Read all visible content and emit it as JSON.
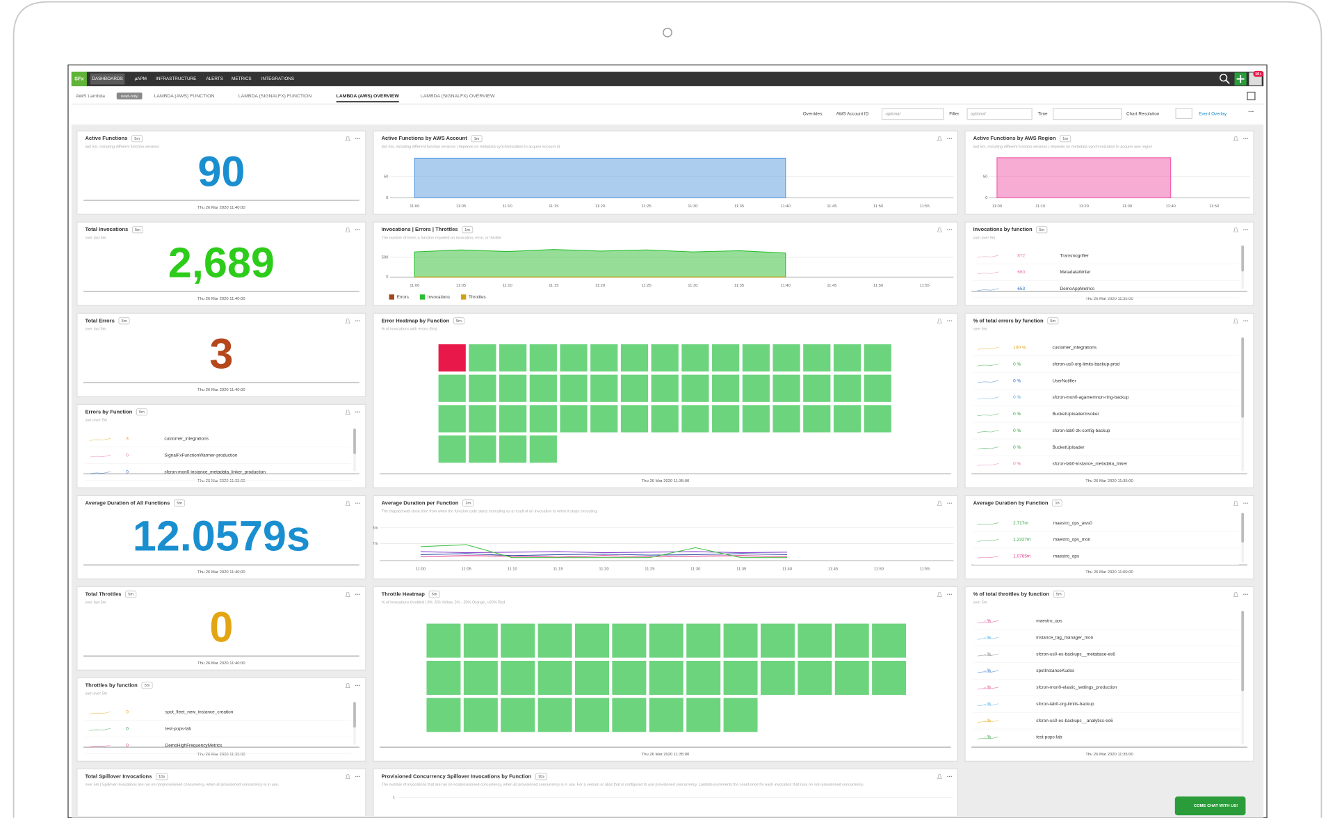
{
  "nav": {
    "logo": "SFx",
    "items": [
      "DASHBOARDS",
      "µAPM",
      "INFRASTRUCTURE",
      "ALERTS",
      "METRICS",
      "INTEGRATIONS"
    ],
    "active": 0,
    "badge": "10+"
  },
  "tabs": {
    "group": "AWS Lambda",
    "group_badge": "read-only",
    "items": [
      "LAMBDA (AWS) FUNCTION",
      "LAMBDA (SIGNALFX) FUNCTION",
      "LAMBDA (AWS) OVERVIEW",
      "LAMBDA (SIGNALFX) OVERVIEW"
    ],
    "active": 2
  },
  "overrides": {
    "label": "Overrides:",
    "fields": [
      {
        "label": "AWS Account ID",
        "placeholder": "optional"
      },
      {
        "label": "Filter",
        "placeholder": "optional"
      },
      {
        "label": "Time"
      }
    ],
    "resolution": "Chart Resolution",
    "event_overlay": "Event Overlay"
  },
  "panels": [
    {
      "kind": "single",
      "title": "Active Functions",
      "badge": "5m",
      "subtitle": "last 5m, including different function versions",
      "value": "90",
      "color": "#1a8fd0",
      "timestamp": "Thu 26 Mar 2020 11:40:00"
    },
    {
      "kind": "chart",
      "type": "area",
      "title": "Active Functions by AWS Account",
      "badge": "1m",
      "subtitle": "last 5m, including different function versions | depends on metadata synchronization to acquire account id",
      "categories": [
        "11:00",
        "11:05",
        "11:10",
        "11:15",
        "11:20",
        "11:25",
        "11:30",
        "11:35",
        "11:40",
        "11:45",
        "11:50",
        "11:55"
      ],
      "series": [
        {
          "color": "#5b9be0",
          "values": [
            93,
            93,
            93,
            93,
            93,
            93,
            93,
            93,
            93,
            null,
            null,
            null
          ]
        }
      ],
      "ylim": [
        0,
        100
      ],
      "yticks": [
        0,
        50
      ]
    },
    {
      "kind": "chart",
      "type": "area",
      "title": "Active Functions by AWS Region",
      "badge": "1m",
      "subtitle": "last 5m, including different function versions | depends on metadata synchronization to acquire aws region",
      "categories": [
        "11:00",
        "11:10",
        "11:20",
        "11:30",
        "11:40",
        "11:50"
      ],
      "series": [
        {
          "color": "#f05aa8",
          "values": [
            94,
            94,
            94,
            94,
            94,
            null
          ]
        }
      ],
      "ylim": [
        0,
        100
      ],
      "yticks": [
        0,
        50
      ]
    },
    {
      "kind": "single",
      "title": "Total Invocations",
      "badge": "5m",
      "subtitle": "over last 5m",
      "value": "2,689",
      "color": "#2dcc1a",
      "timestamp": "Thu 26 Mar 2020 11:40:00"
    },
    {
      "kind": "chart",
      "type": "area",
      "title": "Invocations | Errors | Throttles",
      "badge": "1m",
      "subtitle": "The number of times a function reported an invocation, error, or throttle",
      "categories": [
        "11:00",
        "11:05",
        "11:10",
        "11:15",
        "11:20",
        "11:25",
        "11:30",
        "11:35",
        "11:40",
        "11:45",
        "11:50",
        "11:55"
      ],
      "series": [
        {
          "name": "Errors",
          "color": "#a0471c",
          "values": [
            0,
            0,
            0,
            0,
            0,
            0,
            0,
            0,
            0,
            null,
            null,
            null
          ]
        },
        {
          "name": "Invocations",
          "color": "#2dbe32",
          "values": [
            640,
            690,
            650,
            700,
            660,
            690,
            640,
            670,
            610,
            null,
            null,
            null
          ]
        },
        {
          "name": "Throttles",
          "color": "#d4a017",
          "values": [
            0,
            0,
            0,
            0,
            0,
            0,
            0,
            0,
            0,
            null,
            null,
            null
          ]
        }
      ],
      "ylim": [
        0,
        760
      ],
      "yticks": [
        0,
        500
      ],
      "legend": true
    },
    {
      "kind": "list",
      "title": "Invocations by function",
      "badge": "5m",
      "subtitle": "sum over 5m",
      "rows": [
        {
          "value": "872",
          "name": "Transmogrifier",
          "color": "#e86fb0"
        },
        {
          "value": "660",
          "name": "MetadataWriter",
          "color": "#e86fb0"
        },
        {
          "value": "653",
          "name": "DemoAppMetrics",
          "color": "#2e6fc7"
        }
      ],
      "timestamp": "Thu 26 Mar 2020 11:35:00"
    },
    {
      "kind": "single",
      "title": "Total Errors",
      "badge": "5m",
      "subtitle": "over last 5m",
      "value": "3",
      "color": "#b5471a",
      "timestamp": "Thu 26 Mar 2020 11:40:00"
    },
    {
      "kind": "heatmap",
      "title": "Error Heatmap by Function",
      "badge": "5m",
      "subtitle": "% of invocations with errors (5m)",
      "cells": 49,
      "columns": 15,
      "color": "#6dd47e",
      "alert_cells": [
        0
      ],
      "alert_color": "#e8194a",
      "timestamp": "Thu 26 Mar 2020 11:35:00"
    },
    {
      "kind": "list",
      "title": "% of total errors by function",
      "badge": "5m",
      "subtitle": "over 5m",
      "rows": [
        {
          "value": "100 %",
          "name": "customer_integrations",
          "color": "#e8a317"
        },
        {
          "value": "0 %",
          "name": "sfcron-us0-org-limits-backup-prod",
          "color": "#2e9e3e"
        },
        {
          "value": "0 %",
          "name": "UserNotifier",
          "color": "#2e6fc7"
        },
        {
          "value": "0 %",
          "name": "sfcron-mon0-agamemnon-ring-backup",
          "color": "#4aa8e0"
        },
        {
          "value": "0 %",
          "name": "BucketUploaderInvoker",
          "color": "#2e9e3e"
        },
        {
          "value": "0 %",
          "name": "sfcron-lab0-zk-config-backup",
          "color": "#2e9e3e"
        },
        {
          "value": "0 %",
          "name": "BucketUploader",
          "color": "#2e9e3e"
        },
        {
          "value": "0 %",
          "name": "sfcron-lab0-instance_metadata_linker",
          "color": "#e86fb0"
        }
      ],
      "timestamp": "Thu 26 Mar 2020 11:35:00"
    },
    {
      "kind": "list",
      "title": "Errors by Function",
      "badge": "5m",
      "subtitle": "sum over 5m",
      "rows": [
        {
          "value": "3",
          "name": "customer_integrations",
          "color": "#e8a317"
        },
        {
          "value": "0",
          "name": "SignalFxFunctionWarmer-production",
          "color": "#e86fb0"
        },
        {
          "value": "0",
          "name": "sfcron-mon0-instance_metadata_linker_production",
          "color": "#2e6fc7"
        }
      ],
      "timestamp": "Thu 26 Mar 2020 11:35:00"
    },
    {
      "kind": "single",
      "title": "Average Duration of All Functions",
      "badge": "5m",
      "value": "12.0579s",
      "color": "#1a8fd0",
      "timestamp": "Thu 26 Mar 2020 11:40:00"
    },
    {
      "kind": "chart",
      "type": "line",
      "title": "Average Duration per Function",
      "badge": "1m",
      "subtitle": "The elapsed wall clock time from when the function code starts executing as a result of an invocation to when it stops executing.",
      "categories": [
        "11:00",
        "11:05",
        "11:10",
        "11:15",
        "11:20",
        "11:25",
        "11:30",
        "11:35",
        "11:40",
        "11:45",
        "11:50",
        "11:55"
      ],
      "series": [
        {
          "color": "#3355aa",
          "values": [
            0.6,
            0.7,
            0.5,
            0.6,
            0.65,
            0.55,
            0.6,
            0.7,
            0.6,
            null,
            null,
            null
          ]
        },
        {
          "color": "#e0408a",
          "values": [
            0.4,
            0.5,
            0.45,
            0.35,
            0.5,
            0.4,
            0.45,
            0.5,
            0.4,
            null,
            null,
            null
          ]
        },
        {
          "color": "#8844cc",
          "values": [
            0.9,
            0.8,
            0.85,
            0.9,
            0.8,
            0.85,
            0.9,
            0.8,
            0.85,
            null,
            null,
            null
          ]
        },
        {
          "color": "#4cc24c",
          "values": [
            1.4,
            1.6,
            0.3,
            0.3,
            0.3,
            0.3,
            1.3,
            0.3,
            0.3,
            null,
            null,
            null
          ]
        }
      ],
      "ylim": [
        0,
        4.2
      ],
      "yticks": [
        {
          "value": 1.7,
          "label": "1.7m"
        },
        {
          "value": 3.3,
          "label": "3.3m"
        }
      ]
    },
    {
      "kind": "list",
      "title": "Average Duration by Function",
      "badge": "1h",
      "rows": [
        {
          "value": "2.717m",
          "name": "maestro_ops_aws0",
          "color": "#2e9e3e"
        },
        {
          "value": "1.2327m",
          "name": "maestro_ops_mon",
          "color": "#2e9e3e"
        },
        {
          "value": "1.0765m",
          "name": "maestro_ops",
          "color": "#e0408a"
        }
      ],
      "timestamp": "Thu 26 Mar 2020 11:00:00"
    },
    {
      "kind": "single",
      "title": "Total Throttles",
      "badge": "5m",
      "subtitle": "over last 5m",
      "value": "0",
      "color": "#e3a512",
      "timestamp": "Thu 26 Mar 2020 11:40:00"
    },
    {
      "kind": "heatmap",
      "title": "Throttle Heatmap",
      "badge": "5m",
      "subtitle": "% of invocations throttled | 0% -5% Yellow, 5% - 20% Orange, >20% Red",
      "cells": 35,
      "columns": 13,
      "color": "#6dd47e",
      "alert_cells": [],
      "alert_color": "#e8194a",
      "timestamp": "Thu 26 Mar 2020 11:35:00"
    },
    {
      "kind": "list",
      "title": "% of total throttles by function",
      "badge": "5m",
      "subtitle": "over 5m",
      "rows": [
        {
          "value": "- %",
          "name": "maestro_ops",
          "color": "#e0408a"
        },
        {
          "value": "- %",
          "name": "instance_tag_manager_mon",
          "color": "#4aa8e0"
        },
        {
          "value": "- %",
          "name": "sfcron-us0-es-backups__metabase-es6",
          "color": "#777777"
        },
        {
          "value": "- %",
          "name": "spotInstanceKudos",
          "color": "#2e6fc7"
        },
        {
          "value": "- %",
          "name": "sfcron-mon0-elastic_settings_production",
          "color": "#e0408a"
        },
        {
          "value": "- %",
          "name": "sfcron-lab0-org-limits-backup",
          "color": "#4aa8e0"
        },
        {
          "value": "- %",
          "name": "sfcron-us0-es-backups__analytics-es6",
          "color": "#e8a317"
        },
        {
          "value": "- %",
          "name": "test-pops-lab",
          "color": "#2e9e3e"
        }
      ],
      "timestamp": "Thu 26 Mar 2020 11:35:00"
    },
    {
      "kind": "list",
      "title": "Throttles by function",
      "badge": "5m",
      "subtitle": "sum over 5m",
      "rows": [
        {
          "value": "0",
          "name": "spot_fleet_new_instance_creation",
          "color": "#e8a317"
        },
        {
          "value": "0",
          "name": "test-pops-lab",
          "color": "#2e9e3e"
        },
        {
          "value": "0",
          "name": "DemoHighFrequencyMetrics",
          "color": "#e0408a"
        }
      ],
      "timestamp": "Thu 26 Mar 2020 11:35:00"
    },
    {
      "kind": "single",
      "title": "Total Spillover Invocations",
      "badge": "10s",
      "subtitle": "over 5m | Spillover invocations are run on nonprovisioned concurrency, when all provisioned concurrency is in use."
    },
    {
      "kind": "ticks",
      "title": "Provisioned Concurrency Spillover Invocations by Function",
      "badge": "10s",
      "subtitle": "The number of invocations that are run on nonprovisioned concurrency, when all provisioned concurrency is in use. For a version or alias that is configured to use provisioned concurrency, Lambda increments the count once for each invocation that runs on non-provisioned concurrency.",
      "yticks": [
        1
      ]
    }
  ],
  "chat": "COME CHAT WITH US!"
}
